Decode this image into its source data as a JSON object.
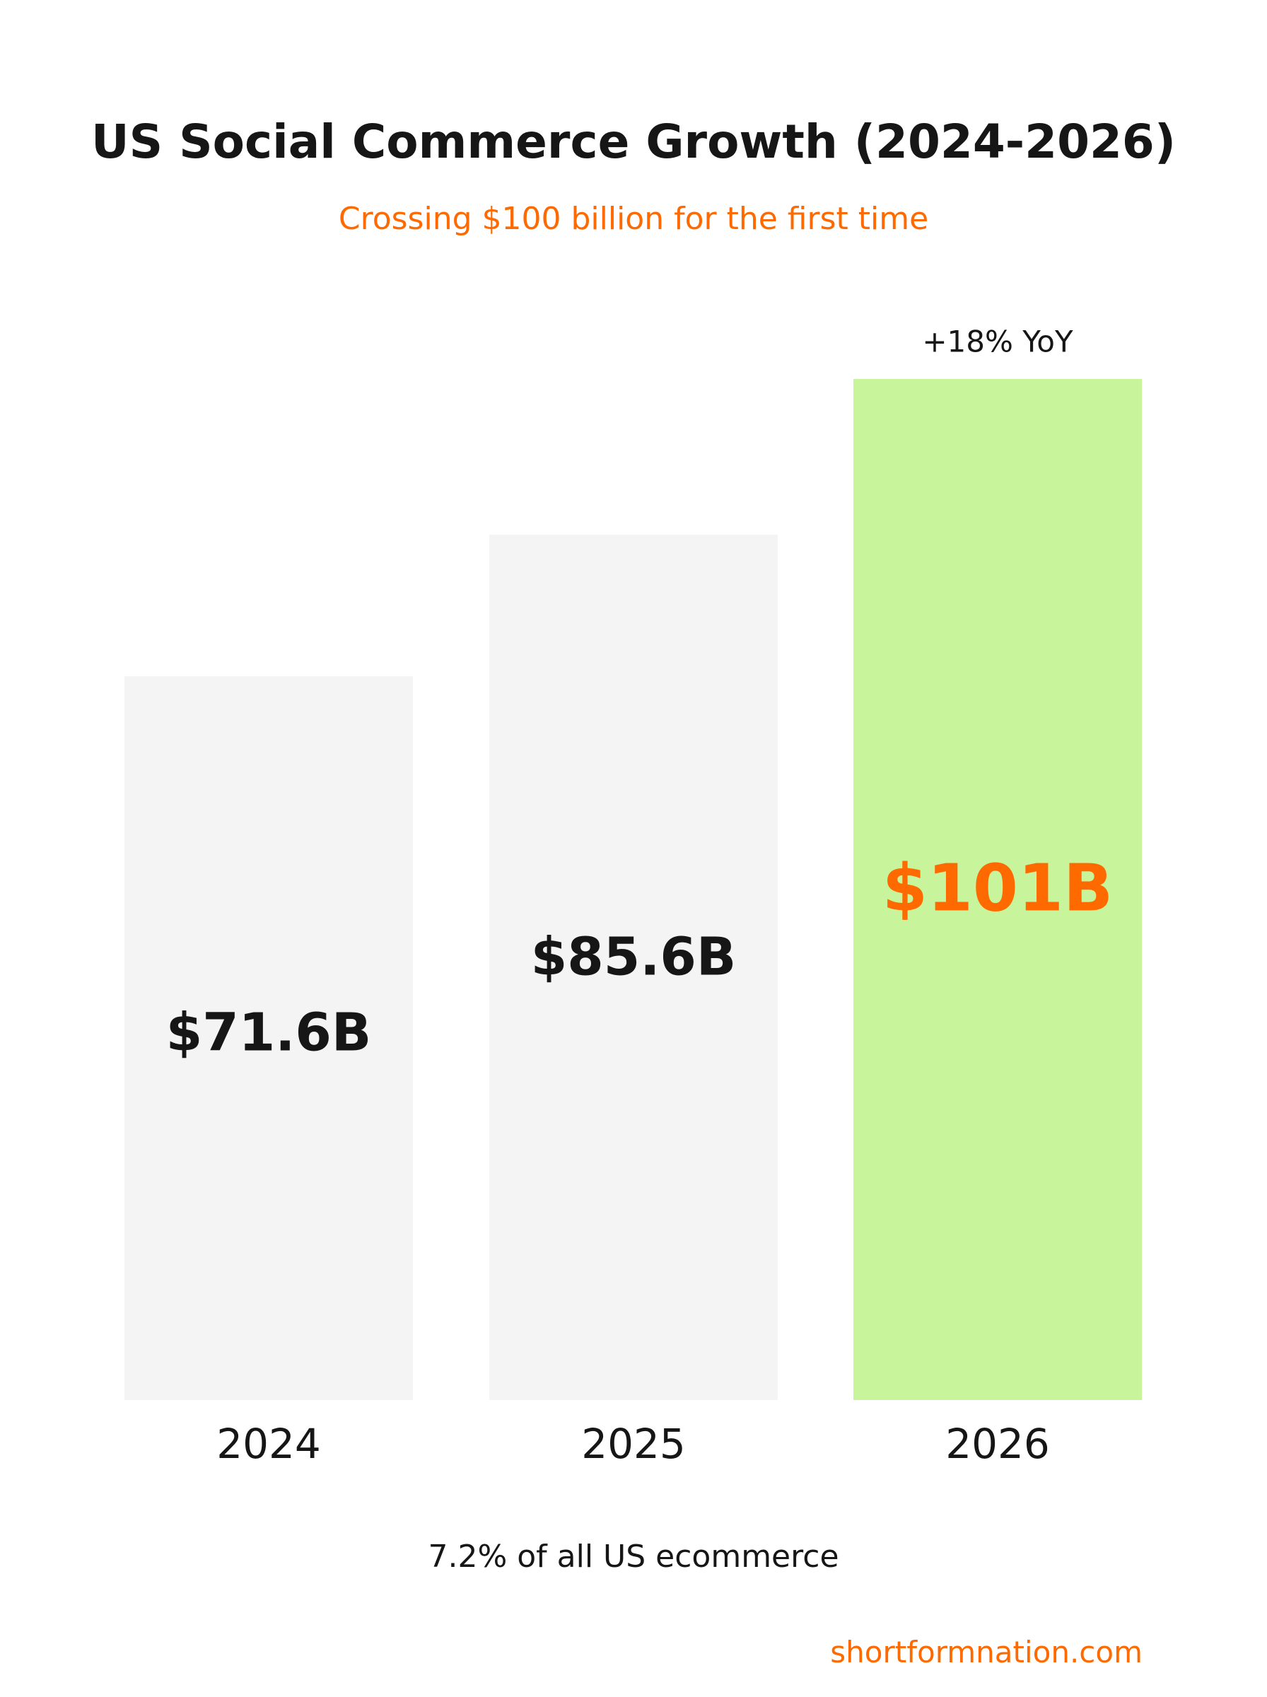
{
  "title": "US Social Commerce Growth (2024-2026)",
  "subtitle": "Crossing $100 billion for the first time",
  "footnote": "7.2% of all US ecommerce",
  "source": "shortformnation.com",
  "colors": {
    "bar_default": "#f4f4f4",
    "bar_highlight": "#c8f59b",
    "label_default": "#161616",
    "label_highlight": "#ff6a00",
    "accent": "#ff6a00"
  },
  "chart_data": {
    "type": "bar",
    "categories": [
      "2024",
      "2025",
      "2026"
    ],
    "values": [
      71.6,
      85.6,
      101
    ],
    "value_labels": [
      "$71.6B",
      "$85.6B",
      "$101B"
    ],
    "highlight_index": 2,
    "annotations": [
      {
        "category": "2026",
        "text": "+18% YoY"
      }
    ],
    "ylim": [
      0,
      140
    ],
    "grid": false,
    "title": "US Social Commerce Growth (2024-2026)",
    "xlabel": "",
    "ylabel": ""
  }
}
